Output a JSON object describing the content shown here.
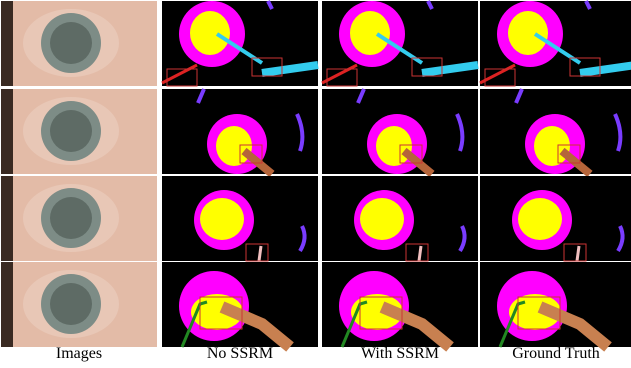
{
  "columns": [
    "Images",
    "No SSRM",
    "With SSRM",
    "Ground Truth"
  ]
}
